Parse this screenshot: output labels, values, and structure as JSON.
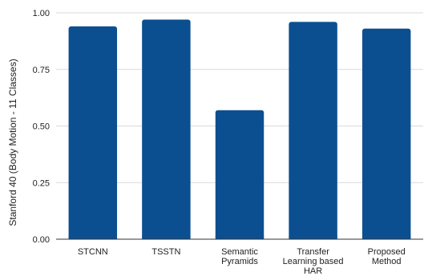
{
  "chart_data": {
    "type": "bar",
    "title": "",
    "xlabel": "",
    "ylabel": "Stanford 40 (Body Motion - 11 Classes)",
    "categories": [
      [
        "STCNN"
      ],
      [
        "TSSTN"
      ],
      [
        "Semantic",
        "Pyramids"
      ],
      [
        "Transfer",
        "Learning based",
        "HAR"
      ],
      [
        "Proposed",
        "Method"
      ]
    ],
    "series": [
      {
        "values": [
          0.94,
          0.97,
          0.57,
          0.96,
          0.93
        ],
        "color": "#0b4f91"
      }
    ],
    "ylim": [
      0,
      1
    ],
    "yticks": [
      0,
      0.25,
      0.5,
      0.75,
      1
    ],
    "ytick_labels": [
      "0.00",
      "0.25",
      "0.50",
      "0.75",
      "1.00"
    ],
    "grid": true,
    "legend": "none",
    "gridline_color": "#d9d9d9",
    "axis_color": "#333333"
  }
}
